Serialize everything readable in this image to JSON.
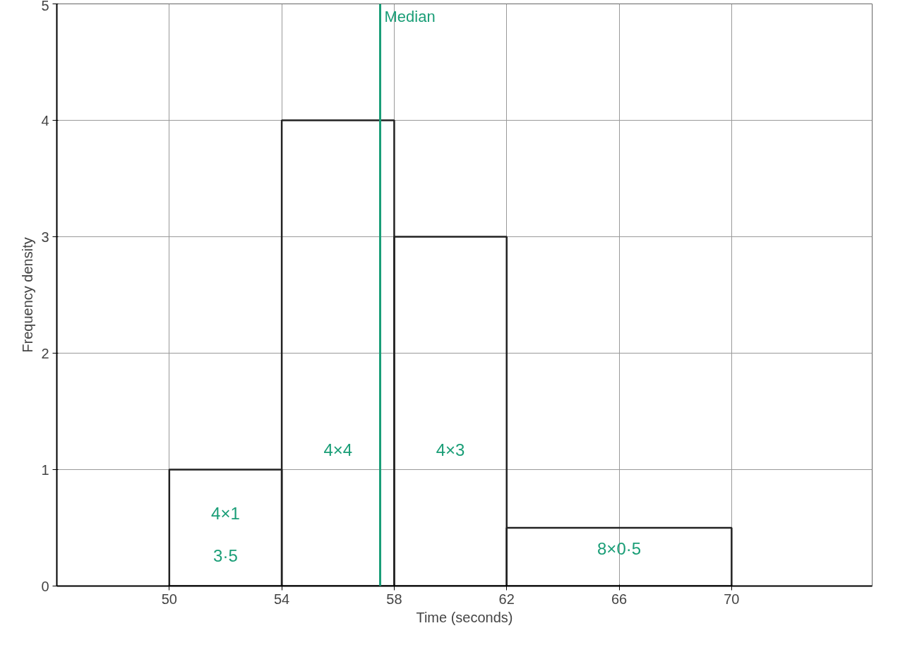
{
  "chart_data": {
    "type": "histogram",
    "xlabel": "Time (seconds)",
    "ylabel": "Frequency density",
    "bins": [
      50,
      54,
      58,
      62,
      70
    ],
    "values": [
      1,
      4,
      3,
      0.5
    ],
    "color": "#222222",
    "xlim": [
      46,
      75
    ],
    "ylim": [
      0,
      5
    ],
    "xticks": [
      50,
      54,
      58,
      62,
      66,
      70
    ],
    "yticks": [
      0,
      1,
      2,
      3,
      4,
      5
    ],
    "grid": true,
    "annotations": [
      "4×1",
      "4×4",
      "4×3",
      "8×0·5",
      "3·5"
    ],
    "ref_lines": [
      {
        "axis": "x",
        "value": 57.5,
        "label": "Median",
        "color": "#1a9e77"
      }
    ]
  }
}
